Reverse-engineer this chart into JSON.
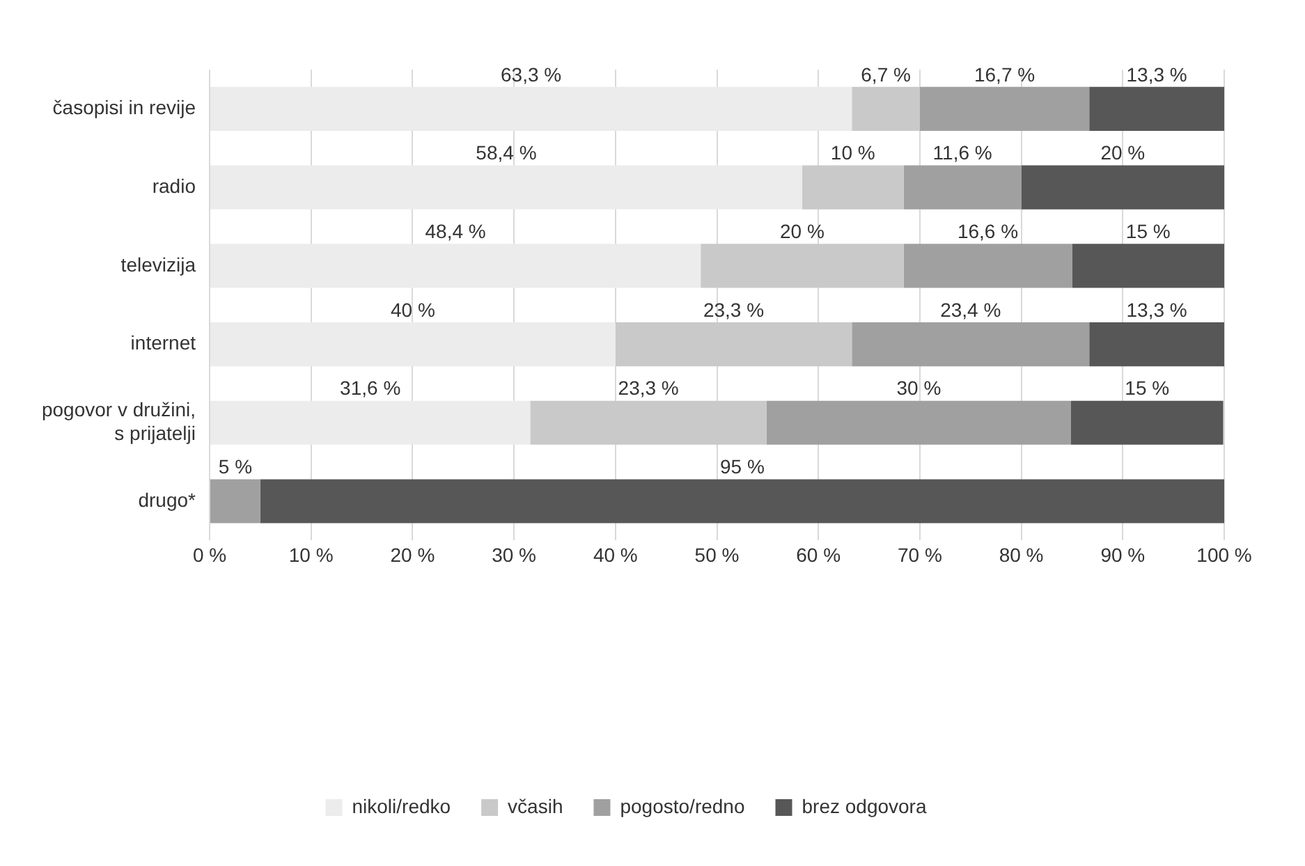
{
  "chart_data": {
    "type": "bar",
    "orientation": "horizontal",
    "stacked": true,
    "categories": [
      "časopisi in revije",
      "radio",
      "televizija",
      "internet",
      "pogovor v družini, s prijatelji",
      "drugo*"
    ],
    "series": [
      {
        "name": "nikoli/redko",
        "color": "#ececec",
        "values": [
          63.3,
          58.4,
          48.4,
          40,
          31.6,
          0
        ],
        "value_labels": [
          "63,3 %",
          "58,4 %",
          "48,4 %",
          "40 %",
          "31,6 %",
          null
        ]
      },
      {
        "name": "včasih",
        "color": "#c9c9c9",
        "values": [
          6.7,
          10,
          20,
          23.3,
          23.3,
          0
        ],
        "value_labels": [
          "6,7 %",
          "10 %",
          "20 %",
          "23,3 %",
          "23,3 %",
          null
        ]
      },
      {
        "name": "pogosto/redno",
        "color": "#a0a0a0",
        "values": [
          16.7,
          11.6,
          16.6,
          23.4,
          30,
          5
        ],
        "value_labels": [
          "16,7 %",
          "11,6 %",
          "16,6 %",
          "23,4 %",
          "30 %",
          "5 %"
        ]
      },
      {
        "name": "brez odgovora",
        "color": "#575757",
        "values": [
          13.3,
          20,
          15,
          13.3,
          15,
          95
        ],
        "value_labels": [
          "13,3 %",
          "20 %",
          "15 %",
          "13,3 %",
          "15 %",
          "95 %"
        ]
      }
    ],
    "xlim": [
      0,
      100
    ],
    "xticks": [
      {
        "value": 0,
        "label": "0 %"
      },
      {
        "value": 10,
        "label": "10 %"
      },
      {
        "value": 20,
        "label": "20 %"
      },
      {
        "value": 30,
        "label": "30 %"
      },
      {
        "value": 40,
        "label": "40 %"
      },
      {
        "value": 50,
        "label": "50 %"
      },
      {
        "value": 60,
        "label": "60 %"
      },
      {
        "value": 70,
        "label": "70 %"
      },
      {
        "value": 80,
        "label": "80 %"
      },
      {
        "value": 90,
        "label": "90 %"
      },
      {
        "value": 100,
        "label": "100 %"
      }
    ],
    "grid": "x",
    "legend": "bottom"
  }
}
